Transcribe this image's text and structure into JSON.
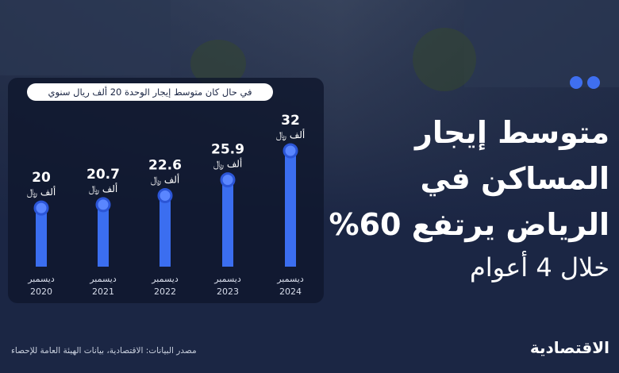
{
  "title": {
    "line1": "متوسط إيجار",
    "line2": "المساكن في",
    "line3": "الرياض يرتفع 60%",
    "line4": "خلال 4 أعوام"
  },
  "subtitle": "في حال كان متوسط إيجار الوحدة 20 ألف ريال سنوي",
  "source": "مصدر البيانات: الاقتصادية، بيانات الهيئة العامة للإحصاء",
  "brand": "الاقتصادية",
  "colors": {
    "bar": "#3b6ef0",
    "background": "#1b2644",
    "panel": "#0e162c"
  },
  "chart_data": {
    "type": "bar",
    "categories": [
      "ديسمبر 2020",
      "ديسمبر 2021",
      "ديسمبر 2022",
      "ديسمبر 2023",
      "ديسمبر 2024"
    ],
    "category_month": [
      "ديسمبر",
      "ديسمبر",
      "ديسمبر",
      "ديسمبر",
      "ديسمبر"
    ],
    "category_year": [
      "2020",
      "2021",
      "2022",
      "2023",
      "2024"
    ],
    "values": [
      20,
      20.7,
      22.6,
      25.9,
      32
    ],
    "value_labels": [
      "20",
      "20.7",
      "22.6",
      "25.9",
      "32"
    ],
    "unit_label": "ألف ﷼",
    "ylim": [
      0,
      32
    ],
    "grid": false
  }
}
